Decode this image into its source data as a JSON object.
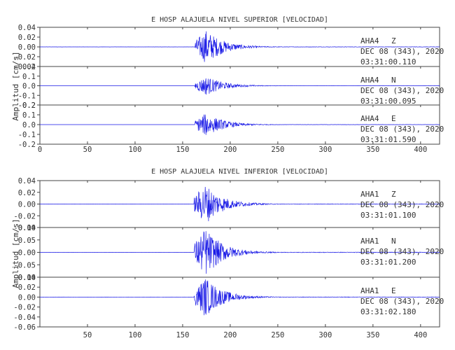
{
  "colors": {
    "trace": "#1a1ae6",
    "axis": "#444444",
    "text": "#333333"
  },
  "chart_data": [
    {
      "type": "line",
      "title": "E HOSP ALAJUELA NIVEL SUPERIOR [VELOCIDAD]",
      "ylabel": "Amplitud [cm/s]",
      "xlim": [
        0,
        420
      ],
      "x_ticks": [
        "0",
        "50",
        "100",
        "150",
        "200",
        "250",
        "300",
        "350",
        "400"
      ],
      "event": {
        "onset": 163,
        "peak": 175,
        "decay": 18,
        "noise": 0.01
      },
      "series": [
        {
          "name": "AHA4 Z",
          "station": "AHA4",
          "component": "Z",
          "date": "DEC 08 (343), 2020",
          "time": "03:31:00.110",
          "ylim": [
            -0.04,
            0.04
          ],
          "y_ticks": [
            "0.04",
            "0.02",
            "0.00",
            "-0.02",
            "-0.04"
          ],
          "peak_amplitude": 0.035
        },
        {
          "name": "AHA4 N",
          "station": "AHA4",
          "component": "N",
          "date": "DEC 08 (343), 2020",
          "time": "03:31:00.095",
          "ylim": [
            -0.2,
            0.2
          ],
          "y_ticks": [
            "0.2",
            "0.1",
            "0.0",
            "-0.1",
            "-0.2"
          ],
          "peak_amplitude": 0.1
        },
        {
          "name": "AHA4 E",
          "station": "AHA4",
          "component": "E",
          "date": "DEC 08 (343), 2020",
          "time": "03:31:01.590",
          "ylim": [
            -0.2,
            0.2
          ],
          "y_ticks": [
            "0.2",
            "0.1",
            "0.0",
            "-0.1",
            "-0.2"
          ],
          "peak_amplitude": 0.12
        }
      ]
    },
    {
      "type": "line",
      "title": "E HOSP ALAJUELA NIVEL INFERIOR [VELOCIDAD]",
      "ylabel": "Amplitud [cm/s]",
      "xlim": [
        0,
        420
      ],
      "x_ticks": [
        "50",
        "100",
        "150",
        "200",
        "250",
        "300",
        "350",
        "400"
      ],
      "event": {
        "onset": 162,
        "peak": 174,
        "decay": 18,
        "noise": 0.012
      },
      "series": [
        {
          "name": "AHA1 Z",
          "station": "AHA1",
          "component": "Z",
          "date": "DEC 08 (343), 2020",
          "time": "03:31:01.100",
          "ylim": [
            -0.04,
            0.04
          ],
          "y_ticks": [
            "0.04",
            "0.02",
            "0.00",
            "-0.02",
            "-0.04"
          ],
          "peak_amplitude": 0.035
        },
        {
          "name": "AHA1 N",
          "station": "AHA1",
          "component": "N",
          "date": "DEC 08 (343), 2020",
          "time": "03:31:01.200",
          "ylim": [
            -0.1,
            0.1
          ],
          "y_ticks": [
            "0.10",
            "0.05",
            "0.00",
            "-0.05",
            "-0.10"
          ],
          "peak_amplitude": 0.1
        },
        {
          "name": "AHA1 E",
          "station": "AHA1",
          "component": "E",
          "date": "DEC 08 (343), 2020",
          "time": "03:31:02.180",
          "ylim": [
            -0.06,
            0.04
          ],
          "y_ticks": [
            "0.04",
            "0.02",
            "0.00",
            "-0.02",
            "-0.04",
            "-0.06"
          ],
          "peak_amplitude": 0.04
        }
      ]
    }
  ]
}
